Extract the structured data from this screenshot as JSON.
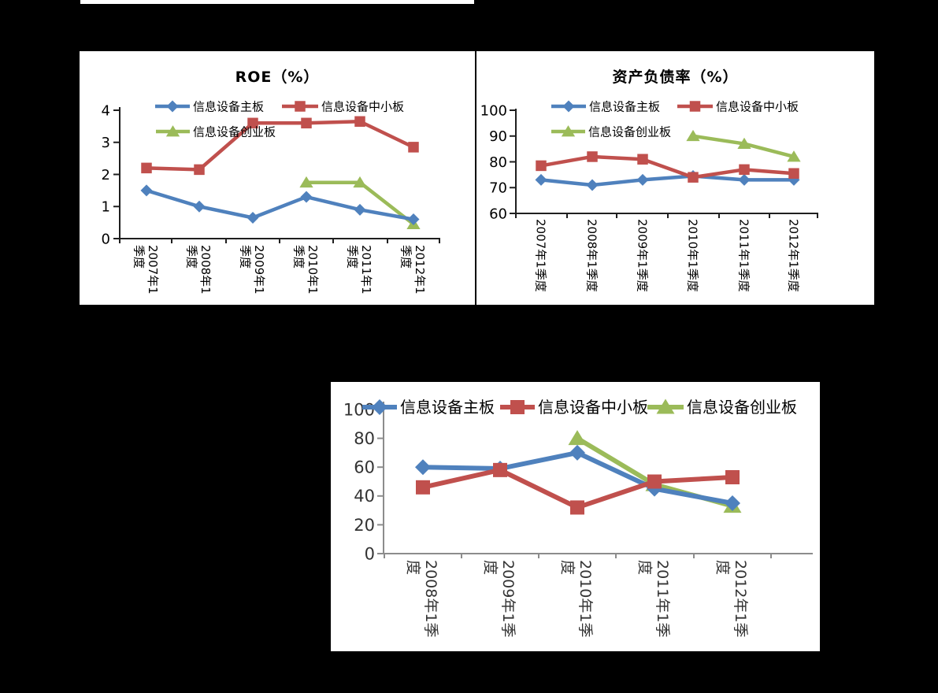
{
  "page": {
    "background": "#000000"
  },
  "palette": {
    "mainboard_blue": "#4F81BD",
    "sme_red": "#C0504D",
    "gem_green": "#9BBB59"
  },
  "chart_data": [
    {
      "type": "line",
      "title": "ROE（%）",
      "xlabel": "",
      "ylabel": "",
      "ylim": [
        0,
        4
      ],
      "yticks": [
        0,
        1,
        2,
        3,
        4
      ],
      "grid": "off",
      "legend_layout": "inside-top-two-rows",
      "categories": [
        "2007年1季度",
        "2008年1季度",
        "2009年1季度",
        "2010年1季度",
        "2011年1季度",
        "2012年1季度"
      ],
      "category_display_lines": [
        [
          "2007年1",
          "季度"
        ],
        [
          "2008年1",
          "季度"
        ],
        [
          "2009年1",
          "季度"
        ],
        [
          "2010年1",
          "季度"
        ],
        [
          "2011年1",
          "季度"
        ],
        [
          "2012年1",
          "季度"
        ]
      ],
      "series": [
        {
          "name": "信息设备主板",
          "color": "#4F81BD",
          "marker": "diamond",
          "values": [
            1.5,
            1.0,
            0.65,
            1.3,
            0.9,
            0.6
          ]
        },
        {
          "name": "信息设备中小板",
          "color": "#C0504D",
          "marker": "square",
          "values": [
            2.2,
            2.15,
            3.6,
            3.6,
            3.65,
            2.85
          ]
        },
        {
          "name": "信息设备创业板",
          "color": "#9BBB59",
          "marker": "triangle",
          "values": [
            null,
            null,
            null,
            1.75,
            1.75,
            0.45
          ]
        }
      ]
    },
    {
      "type": "line",
      "title": "资产负债率（%）",
      "xlabel": "",
      "ylabel": "",
      "ylim": [
        60,
        100
      ],
      "yticks": [
        60,
        70,
        80,
        90,
        100
      ],
      "grid": "off",
      "legend_layout": "inside-top-two-rows",
      "categories": [
        "2007年1季度",
        "2008年1季度",
        "2009年1季度",
        "2010年1季度",
        "2011年1季度",
        "2012年1季度"
      ],
      "category_display_lines": [
        [
          "2007年1季度"
        ],
        [
          "2008年1季度"
        ],
        [
          "2009年1季度"
        ],
        [
          "2010年1季度"
        ],
        [
          "2011年1季度"
        ],
        [
          "2012年1季度"
        ]
      ],
      "series": [
        {
          "name": "信息设备主板",
          "color": "#4F81BD",
          "marker": "diamond",
          "values": [
            73,
            71,
            73,
            74.5,
            73,
            73
          ]
        },
        {
          "name": "信息设备中小板",
          "color": "#C0504D",
          "marker": "square",
          "values": [
            78.5,
            82,
            81,
            74,
            77,
            75.5
          ]
        },
        {
          "name": "信息设备创业板",
          "color": "#9BBB59",
          "marker": "triangle",
          "values": [
            null,
            null,
            null,
            90,
            87,
            82
          ]
        }
      ]
    },
    {
      "type": "line",
      "title": "",
      "xlabel": "",
      "ylabel": "",
      "ylim": [
        0,
        100
      ],
      "yticks": [
        0,
        20,
        40,
        60,
        80,
        100
      ],
      "grid": "off",
      "legend_layout": "inside-top-single-row",
      "categories": [
        "2008年1季度",
        "2009年1季度",
        "2010年1季度",
        "2011年1季度",
        "2012年1季度"
      ],
      "category_display_lines": [
        [
          "2008年1季",
          "度"
        ],
        [
          "2009年1季",
          "度"
        ],
        [
          "2010年1季",
          "度"
        ],
        [
          "2011年1季",
          "度"
        ],
        [
          "2012年1季",
          "度"
        ]
      ],
      "series": [
        {
          "name": "信息设备主板",
          "color": "#4F81BD",
          "marker": "diamond",
          "values": [
            60,
            59,
            70,
            45,
            35
          ]
        },
        {
          "name": "信息设备中小板",
          "color": "#C0504D",
          "marker": "square",
          "values": [
            46,
            58,
            32,
            50,
            53
          ]
        },
        {
          "name": "信息设备创业板",
          "color": "#9BBB59",
          "marker": "triangle",
          "values": [
            null,
            null,
            80,
            48,
            33
          ]
        }
      ]
    }
  ]
}
